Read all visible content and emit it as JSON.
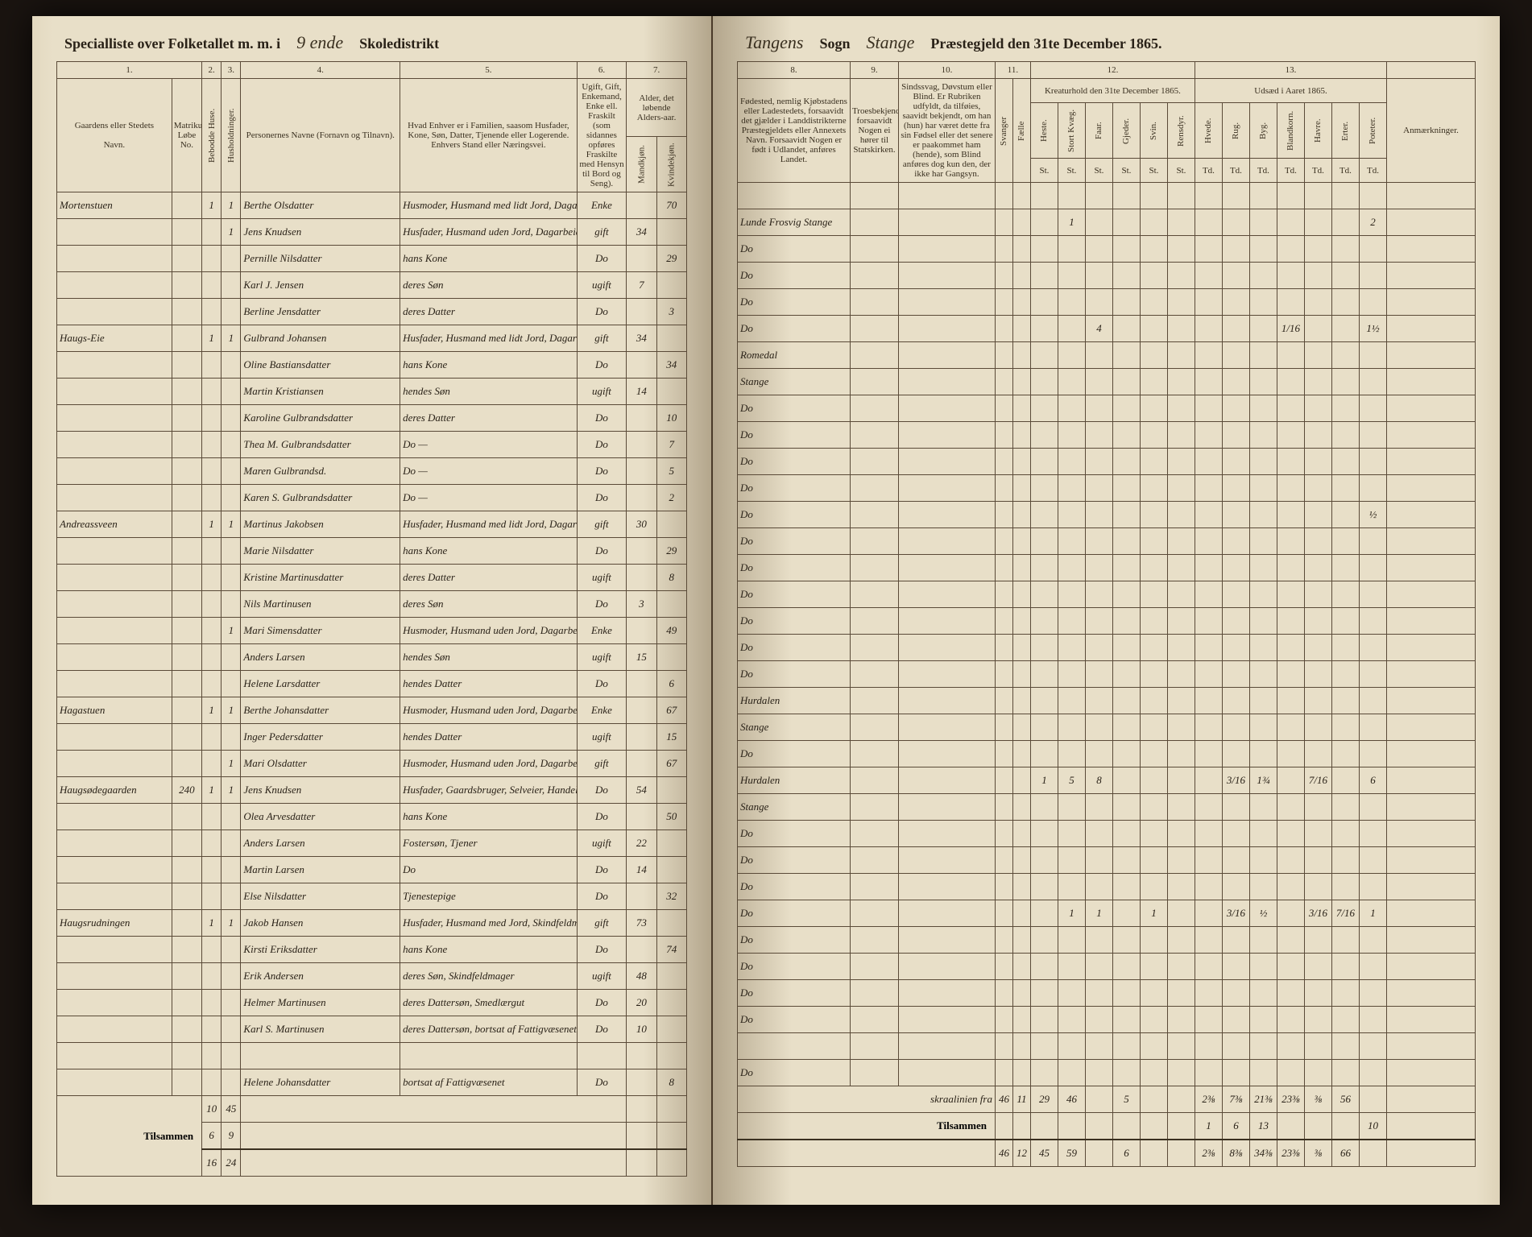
{
  "header_left": {
    "print1": "Specialliste over Folketallet m. m. i",
    "script1": "9 ende",
    "print2": "Skoledistrikt"
  },
  "header_right": {
    "script1": "Tangens",
    "print1": "Sogn",
    "script2": "Stange",
    "print2": "Præstegjeld den 31te December 1865."
  },
  "colnums_left": [
    "1.",
    "2.",
    "3.",
    "4.",
    "5.",
    "6.",
    "7."
  ],
  "colnums_right": [
    "8.",
    "9.",
    "10.",
    "11.",
    "12.",
    "13."
  ],
  "colheads_left": {
    "c1a": "Gaardens eller Stedets",
    "c1b": "Navn.",
    "c1c": "Matrikul Løbe No.",
    "c2": "Bebodde Huse.",
    "c3": "Husholdninger.",
    "c4": "Personernes Navne (Fornavn og Tilnavn).",
    "c5": "Hvad Enhver er i Familien, saasom Husfader, Kone, Søn, Datter, Tjenende eller Logerende. Enhvers Stand eller Næringsvei.",
    "c6": "Ugift, Gift, Enkemand, Enke ell. Fraskilt (som sidannes opføres Fraskilte med Hensyn til Bord og Seng).",
    "c7": "Alder, det løbende Alders-aar.",
    "c7a": "Mandkjøn.",
    "c7b": "Kvindekjøn."
  },
  "colheads_right": {
    "c8": "Fødested, nemlig Kjøbstadens eller Ladestedets, forsaavidt det gjælder i Landdistrikterne Præstegjeldets eller Annexets Navn. Forsaavidt Nogen er født i Udlandet, anføres Landet.",
    "c9": "Troesbekjendelse, forsaavidt Nogen ei hører til Statskirken.",
    "c10": "Sindssvag, Døvstum eller Blind. Er Rubriken udfyldt, da tilføies, saavidt bekjendt, om han (hun) har været dette fra sin Fødsel eller det senere er paakommet ham (hende), som Blind anføres dog kun den, der ikke har Gangsyn.",
    "c11a": "Svanger",
    "c11b": "Fælle",
    "c12": "Kreaturhold den 31te December 1865.",
    "c12_sub": [
      "Heste.",
      "Stort Kvæg.",
      "Faar.",
      "Gjeder.",
      "Svin.",
      "Rensdyr."
    ],
    "c13": "Udsæd i Aaret 1865.",
    "c13_sub": [
      "Hvede.",
      "Rug.",
      "Byg.",
      "Blandkorn.",
      "Havre.",
      "Erter.",
      "Poteter."
    ],
    "c14": "Anmærkninger.",
    "unit": "St.",
    "unit2": "Td."
  },
  "rows": [
    {
      "gaard": "Mortenstuen",
      "mn": "",
      "h": "1",
      "f": "1",
      "navn": "Berthe Olsdatter",
      "fam": "Husmoder, Husmand med lidt Jord, Dagarbeider",
      "status": "Enke",
      "m": "",
      "k": "70",
      "sted": "",
      "kreat": [
        "",
        "",
        "",
        "",
        "",
        ""
      ],
      "uds": [
        "",
        "",
        "",
        "",
        "",
        "",
        ""
      ]
    },
    {
      "gaard": "",
      "mn": "",
      "h": "",
      "f": "1",
      "navn": "Jens Knudsen",
      "fam": "Husfader, Husmand uden Jord, Dagarbeider",
      "status": "gift",
      "m": "34",
      "k": "",
      "sted": "Lunde Frosvig Stange",
      "kreat": [
        "",
        "1",
        "",
        "",
        "",
        ""
      ],
      "uds": [
        "",
        "",
        "",
        "",
        "",
        "",
        "2"
      ]
    },
    {
      "gaard": "",
      "mn": "",
      "h": "",
      "f": "",
      "navn": "Pernille Nilsdatter",
      "fam": "hans Kone",
      "status": "Do",
      "m": "",
      "k": "29",
      "sted": "Do",
      "kreat": [
        "",
        "",
        "",
        "",
        "",
        ""
      ],
      "uds": [
        "",
        "",
        "",
        "",
        "",
        "",
        ""
      ]
    },
    {
      "gaard": "",
      "mn": "",
      "h": "",
      "f": "",
      "navn": "Karl J. Jensen",
      "fam": "deres Søn",
      "status": "ugift",
      "m": "7",
      "k": "",
      "sted": "Do",
      "kreat": [
        "",
        "",
        "",
        "",
        "",
        ""
      ],
      "uds": [
        "",
        "",
        "",
        "",
        "",
        "",
        ""
      ]
    },
    {
      "gaard": "",
      "mn": "",
      "h": "",
      "f": "",
      "navn": "Berline Jensdatter",
      "fam": "deres Datter",
      "status": "Do",
      "m": "",
      "k": "3",
      "sted": "Do",
      "kreat": [
        "",
        "",
        "",
        "",
        "",
        ""
      ],
      "uds": [
        "",
        "",
        "",
        "",
        "",
        "",
        ""
      ]
    },
    {
      "gaard": "Haugs-Eie",
      "mn": "",
      "h": "1",
      "f": "1",
      "navn": "Gulbrand Johansen",
      "fam": "Husfader, Husmand med lidt Jord, Dagarbeider",
      "status": "gift",
      "m": "34",
      "k": "",
      "sted": "Do",
      "kreat": [
        "",
        "",
        "4",
        "",
        "",
        ""
      ],
      "uds": [
        "",
        "",
        "",
        "1/16",
        "",
        "",
        "1½"
      ]
    },
    {
      "gaard": "",
      "mn": "",
      "h": "",
      "f": "",
      "navn": "Oline Bastiansdatter",
      "fam": "hans Kone",
      "status": "Do",
      "m": "",
      "k": "34",
      "sted": "Romedal",
      "kreat": [
        "",
        "",
        "",
        "",
        "",
        ""
      ],
      "uds": [
        "",
        "",
        "",
        "",
        "",
        "",
        ""
      ]
    },
    {
      "gaard": "",
      "mn": "",
      "h": "",
      "f": "",
      "navn": "Martin Kristiansen",
      "fam": "hendes Søn",
      "status": "ugift",
      "m": "14",
      "k": "",
      "sted": "Stange",
      "kreat": [
        "",
        "",
        "",
        "",
        "",
        ""
      ],
      "uds": [
        "",
        "",
        "",
        "",
        "",
        "",
        ""
      ]
    },
    {
      "gaard": "",
      "mn": "",
      "h": "",
      "f": "",
      "navn": "Karoline Gulbrandsdatter",
      "fam": "deres Datter",
      "status": "Do",
      "m": "",
      "k": "10",
      "sted": "Do",
      "kreat": [
        "",
        "",
        "",
        "",
        "",
        ""
      ],
      "uds": [
        "",
        "",
        "",
        "",
        "",
        "",
        ""
      ]
    },
    {
      "gaard": "",
      "mn": "",
      "h": "",
      "f": "",
      "navn": "Thea M. Gulbrandsdatter",
      "fam": "Do —",
      "status": "Do",
      "m": "",
      "k": "7",
      "sted": "Do",
      "kreat": [
        "",
        "",
        "",
        "",
        "",
        ""
      ],
      "uds": [
        "",
        "",
        "",
        "",
        "",
        "",
        ""
      ]
    },
    {
      "gaard": "",
      "mn": "",
      "h": "",
      "f": "",
      "navn": "Maren Gulbrandsd.",
      "fam": "Do —",
      "status": "Do",
      "m": "",
      "k": "5",
      "sted": "Do",
      "kreat": [
        "",
        "",
        "",
        "",
        "",
        ""
      ],
      "uds": [
        "",
        "",
        "",
        "",
        "",
        "",
        ""
      ]
    },
    {
      "gaard": "",
      "mn": "",
      "h": "",
      "f": "",
      "navn": "Karen S. Gulbrandsdatter",
      "fam": "Do —",
      "status": "Do",
      "m": "",
      "k": "2",
      "sted": "Do",
      "kreat": [
        "",
        "",
        "",
        "",
        "",
        ""
      ],
      "uds": [
        "",
        "",
        "",
        "",
        "",
        "",
        ""
      ]
    },
    {
      "gaard": "Andreassveen",
      "mn": "",
      "h": "1",
      "f": "1",
      "navn": "Martinus Jakobsen",
      "fam": "Husfader, Husmand med lidt Jord, Dagarbeider",
      "status": "gift",
      "m": "30",
      "k": "",
      "sted": "Do",
      "kreat": [
        "",
        "",
        "",
        "",
        "",
        ""
      ],
      "uds": [
        "",
        "",
        "",
        "",
        "",
        "",
        "½"
      ]
    },
    {
      "gaard": "",
      "mn": "",
      "h": "",
      "f": "",
      "navn": "Marie Nilsdatter",
      "fam": "hans Kone",
      "status": "Do",
      "m": "",
      "k": "29",
      "sted": "Do",
      "kreat": [
        "",
        "",
        "",
        "",
        "",
        ""
      ],
      "uds": [
        "",
        "",
        "",
        "",
        "",
        "",
        ""
      ]
    },
    {
      "gaard": "",
      "mn": "",
      "h": "",
      "f": "",
      "navn": "Kristine Martinusdatter",
      "fam": "deres Datter",
      "status": "ugift",
      "m": "",
      "k": "8",
      "sted": "Do",
      "kreat": [
        "",
        "",
        "",
        "",
        "",
        ""
      ],
      "uds": [
        "",
        "",
        "",
        "",
        "",
        "",
        ""
      ]
    },
    {
      "gaard": "",
      "mn": "",
      "h": "",
      "f": "",
      "navn": "Nils Martinusen",
      "fam": "deres Søn",
      "status": "Do",
      "m": "3",
      "k": "",
      "sted": "Do",
      "kreat": [
        "",
        "",
        "",
        "",
        "",
        ""
      ],
      "uds": [
        "",
        "",
        "",
        "",
        "",
        "",
        ""
      ]
    },
    {
      "gaard": "",
      "mn": "",
      "h": "",
      "f": "1",
      "navn": "Mari Simensdatter",
      "fam": "Husmoder, Husmand uden Jord, Dagarbeider",
      "status": "Enke",
      "m": "",
      "k": "49",
      "sted": "Do",
      "kreat": [
        "",
        "",
        "",
        "",
        "",
        ""
      ],
      "uds": [
        "",
        "",
        "",
        "",
        "",
        "",
        ""
      ]
    },
    {
      "gaard": "",
      "mn": "",
      "h": "",
      "f": "",
      "navn": "Anders Larsen",
      "fam": "hendes Søn",
      "status": "ugift",
      "m": "15",
      "k": "",
      "sted": "Do",
      "kreat": [
        "",
        "",
        "",
        "",
        "",
        ""
      ],
      "uds": [
        "",
        "",
        "",
        "",
        "",
        "",
        ""
      ]
    },
    {
      "gaard": "",
      "mn": "",
      "h": "",
      "f": "",
      "navn": "Helene Larsdatter",
      "fam": "hendes Datter",
      "status": "Do",
      "m": "",
      "k": "6",
      "sted": "Do",
      "kreat": [
        "",
        "",
        "",
        "",
        "",
        ""
      ],
      "uds": [
        "",
        "",
        "",
        "",
        "",
        "",
        ""
      ]
    },
    {
      "gaard": "Hagastuen",
      "mn": "",
      "h": "1",
      "f": "1",
      "navn": "Berthe Johansdatter",
      "fam": "Husmoder, Husmand uden Jord, Dagarbeider",
      "status": "Enke",
      "m": "",
      "k": "67",
      "sted": "Hurdalen",
      "kreat": [
        "",
        "",
        "",
        "",
        "",
        ""
      ],
      "uds": [
        "",
        "",
        "",
        "",
        "",
        "",
        ""
      ]
    },
    {
      "gaard": "",
      "mn": "",
      "h": "",
      "f": "",
      "navn": "Inger Pedersdatter",
      "fam": "hendes Datter",
      "status": "ugift",
      "m": "",
      "k": "15",
      "sted": "Stange",
      "kreat": [
        "",
        "",
        "",
        "",
        "",
        ""
      ],
      "uds": [
        "",
        "",
        "",
        "",
        "",
        "",
        ""
      ]
    },
    {
      "gaard": "",
      "mn": "",
      "h": "",
      "f": "1",
      "navn": "Mari Olsdatter",
      "fam": "Husmoder, Husmand uden Jord, Dagarbeider, af Fattigvæsenet",
      "status": "gift",
      "m": "",
      "k": "67",
      "sted": "Do",
      "kreat": [
        "",
        "",
        "",
        "",
        "",
        ""
      ],
      "uds": [
        "",
        "",
        "",
        "",
        "",
        "",
        ""
      ]
    },
    {
      "gaard": "Haugsødegaarden",
      "mn": "240",
      "h": "1",
      "f": "1",
      "navn": "Jens Knudsen",
      "fam": "Husfader, Gaardsbruger, Selveier, Handelsreisende",
      "status": "Do",
      "m": "54",
      "k": "",
      "sted": "Hurdalen",
      "kreat": [
        "1",
        "5",
        "8",
        "",
        "",
        ""
      ],
      "uds": [
        "",
        "3/16",
        "1¾",
        "",
        "7/16",
        "",
        "6"
      ]
    },
    {
      "gaard": "",
      "mn": "",
      "h": "",
      "f": "",
      "navn": "Olea Arvesdatter",
      "fam": "hans Kone",
      "status": "Do",
      "m": "",
      "k": "50",
      "sted": "Stange",
      "kreat": [
        "",
        "",
        "",
        "",
        "",
        ""
      ],
      "uds": [
        "",
        "",
        "",
        "",
        "",
        "",
        ""
      ]
    },
    {
      "gaard": "",
      "mn": "",
      "h": "",
      "f": "",
      "navn": "Anders Larsen",
      "fam": "Fostersøn, Tjener",
      "status": "ugift",
      "m": "22",
      "k": "",
      "sted": "Do",
      "kreat": [
        "",
        "",
        "",
        "",
        "",
        ""
      ],
      "uds": [
        "",
        "",
        "",
        "",
        "",
        "",
        ""
      ]
    },
    {
      "gaard": "",
      "mn": "",
      "h": "",
      "f": "",
      "navn": "Martin Larsen",
      "fam": "Do",
      "status": "Do",
      "m": "14",
      "k": "",
      "sted": "Do",
      "kreat": [
        "",
        "",
        "",
        "",
        "",
        ""
      ],
      "uds": [
        "",
        "",
        "",
        "",
        "",
        "",
        ""
      ]
    },
    {
      "gaard": "",
      "mn": "",
      "h": "",
      "f": "",
      "navn": "Else Nilsdatter",
      "fam": "Tjenestepige",
      "status": "Do",
      "m": "",
      "k": "32",
      "sted": "Do",
      "kreat": [
        "",
        "",
        "",
        "",
        "",
        ""
      ],
      "uds": [
        "",
        "",
        "",
        "",
        "",
        "",
        ""
      ]
    },
    {
      "gaard": "Haugsrudningen",
      "mn": "",
      "h": "1",
      "f": "1",
      "navn": "Jakob Hansen",
      "fam": "Husfader, Husmand med Jord, Skindfeldmager",
      "status": "gift",
      "m": "73",
      "k": "",
      "sted": "Do",
      "kreat": [
        "",
        "1",
        "1",
        "",
        "1",
        ""
      ],
      "uds": [
        "",
        "3/16",
        "½",
        "",
        "3/16",
        "7/16",
        "1"
      ]
    },
    {
      "gaard": "",
      "mn": "",
      "h": "",
      "f": "",
      "navn": "Kirsti Eriksdatter",
      "fam": "hans Kone",
      "status": "Do",
      "m": "",
      "k": "74",
      "sted": "Do",
      "kreat": [
        "",
        "",
        "",
        "",
        "",
        ""
      ],
      "uds": [
        "",
        "",
        "",
        "",
        "",
        "",
        ""
      ]
    },
    {
      "gaard": "",
      "mn": "",
      "h": "",
      "f": "",
      "navn": "Erik Andersen",
      "fam": "deres Søn, Skindfeldmager",
      "status": "ugift",
      "m": "48",
      "k": "",
      "sted": "Do",
      "kreat": [
        "",
        "",
        "",
        "",
        "",
        ""
      ],
      "uds": [
        "",
        "",
        "",
        "",
        "",
        "",
        ""
      ]
    },
    {
      "gaard": "",
      "mn": "",
      "h": "",
      "f": "",
      "navn": "Helmer Martinusen",
      "fam": "deres Dattersøn, Smedlærgut",
      "status": "Do",
      "m": "20",
      "k": "",
      "sted": "Do",
      "kreat": [
        "",
        "",
        "",
        "",
        "",
        ""
      ],
      "uds": [
        "",
        "",
        "",
        "",
        "",
        "",
        ""
      ]
    },
    {
      "gaard": "",
      "mn": "",
      "h": "",
      "f": "",
      "navn": "Karl S. Martinusen",
      "fam": "deres Dattersøn, bortsat af Fattigvæsenet",
      "status": "Do",
      "m": "10",
      "k": "",
      "sted": "Do",
      "kreat": [
        "",
        "",
        "",
        "",
        "",
        ""
      ],
      "uds": [
        "",
        "",
        "",
        "",
        "",
        "",
        ""
      ]
    },
    {
      "gaard": "",
      "mn": "",
      "h": "",
      "f": "",
      "navn": "",
      "fam": "",
      "status": "",
      "m": "",
      "k": "",
      "sted": "",
      "kreat": [
        "",
        "",
        "",
        "",
        "",
        ""
      ],
      "uds": [
        "",
        "",
        "",
        "",
        "",
        "",
        ""
      ]
    },
    {
      "gaard": "",
      "mn": "",
      "h": "",
      "f": "",
      "navn": "Helene Johansdatter",
      "fam": "bortsat af Fattigvæsenet",
      "status": "Do",
      "m": "",
      "k": "8",
      "sted": "Do",
      "kreat": [
        "",
        "",
        "",
        "",
        "",
        ""
      ],
      "uds": [
        "",
        "",
        "",
        "",
        "",
        "",
        ""
      ]
    }
  ],
  "left_totals": {
    "r1": [
      "",
      "10",
      "45",
      "",
      "",
      "",
      ""
    ],
    "r2": [
      "",
      "6",
      "9",
      "",
      "",
      "",
      ""
    ],
    "r3": [
      "",
      "16",
      "24",
      "",
      "",
      "",
      ""
    ]
  },
  "right_note": "skraalinien fra",
  "right_totals": {
    "r1": [
      "46",
      "11",
      "29",
      "46",
      "",
      "5",
      "",
      "",
      "2⅜",
      "7⅜",
      "21⅜",
      "23⅜",
      "⅜",
      "56",
      ""
    ],
    "r2": [
      "",
      "",
      "",
      "",
      "",
      "",
      "",
      "",
      "1",
      "6",
      "13",
      "",
      "",
      "",
      "10"
    ],
    "r3": [
      "46",
      "12",
      "45",
      "59",
      "",
      "6",
      "",
      "",
      "2⅜",
      "8⅜",
      "34⅜",
      "23⅜",
      "⅜",
      "66",
      ""
    ]
  },
  "labels": {
    "tilsammen": "Tilsammen"
  }
}
